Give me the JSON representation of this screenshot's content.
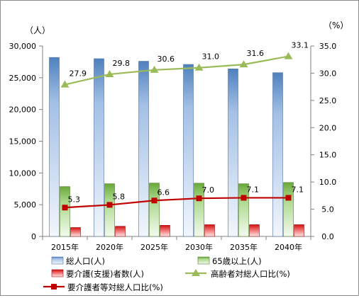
{
  "chart_data": {
    "type": "bar",
    "categories": [
      "2015年",
      "2020年",
      "2025年",
      "2030年",
      "2035年",
      "2040年"
    ],
    "left_unit": "（人）",
    "right_unit": "（%）",
    "left_axis": {
      "min": 0,
      "max": 30000,
      "ticks": [
        "0",
        "5,000",
        "10,000",
        "15,000",
        "20,000",
        "25,000",
        "30,000"
      ]
    },
    "right_axis": {
      "min": 0,
      "max": 35,
      "ticks": [
        "0.0",
        "5.0",
        "10.0",
        "15.0",
        "20.0",
        "25.0",
        "30.0",
        "35.0"
      ]
    },
    "gridlines": false,
    "legend_position": "bottom",
    "series": [
      {
        "name": "総人口(人)",
        "kind": "bar",
        "axis": "left",
        "color": "#8db4e2",
        "values": [
          28200,
          28000,
          27600,
          27100,
          26400,
          25800
        ]
      },
      {
        "name": "65歳以上(人)",
        "kind": "bar",
        "axis": "left",
        "color": "#8fc565",
        "values": [
          7850,
          8300,
          8400,
          8380,
          8300,
          8500
        ]
      },
      {
        "name": "要介護(支援)者数(人)",
        "kind": "bar",
        "axis": "left",
        "color": "#e02020",
        "values": [
          1400,
          1600,
          1750,
          1850,
          1850,
          1850
        ]
      },
      {
        "name": "高齢者対総人口比(%)",
        "kind": "line",
        "axis": "right",
        "color": "#9bbb59",
        "marker": "triangle",
        "values": [
          27.9,
          29.8,
          30.6,
          31.0,
          31.6,
          33.1
        ],
        "labels": [
          "27.9",
          "29.8",
          "30.6",
          "31.0",
          "31.6",
          "33.1"
        ]
      },
      {
        "name": "要介護者等対総人口比(%)",
        "kind": "line",
        "axis": "right",
        "color": "#c00000",
        "marker": "square",
        "values": [
          5.3,
          5.8,
          6.6,
          7.0,
          7.1,
          7.1
        ],
        "labels": [
          "5.3",
          "5.8",
          "6.6",
          "7.0",
          "7.1",
          "7.1"
        ]
      }
    ]
  }
}
